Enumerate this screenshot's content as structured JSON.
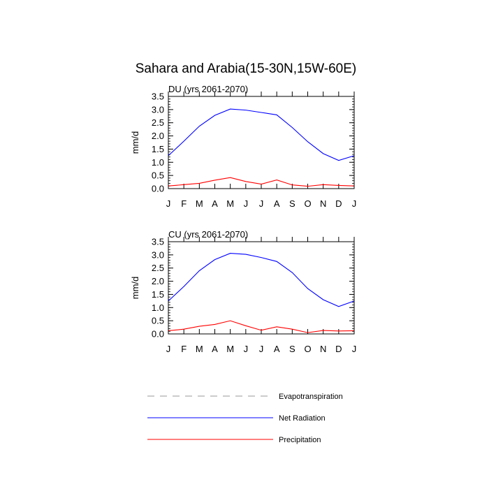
{
  "figure": {
    "title": "Sahara and Arabia(15-30N,15W-60E)"
  },
  "legend": [
    {
      "name": "Evapotranspiration",
      "style": "dashed",
      "color": "#999999"
    },
    {
      "name": "Net Radiation",
      "style": "solid",
      "color": "#0000ff"
    },
    {
      "name": "Precipitation",
      "style": "solid",
      "color": "#ff0000"
    }
  ],
  "chart_data": [
    {
      "type": "line",
      "title": "DU (yrs 2061-2070)",
      "xlabel": "",
      "ylabel": "mm/d",
      "categories": [
        "J",
        "F",
        "M",
        "A",
        "M",
        "J",
        "J",
        "A",
        "S",
        "O",
        "N",
        "D",
        "J"
      ],
      "ylim": [
        0,
        3.5
      ],
      "yticks": [
        "0.0",
        "0.5",
        "1.0",
        "1.5",
        "2.0",
        "2.5",
        "3.0",
        "3.5"
      ],
      "series": [
        {
          "name": "Net Radiation",
          "color": "#0000ff",
          "values": [
            1.25,
            1.8,
            2.37,
            2.78,
            3.02,
            2.98,
            2.89,
            2.8,
            2.32,
            1.78,
            1.33,
            1.07,
            1.25
          ]
        },
        {
          "name": "Precipitation",
          "color": "#ff0000",
          "values": [
            0.1,
            0.15,
            0.2,
            0.32,
            0.42,
            0.27,
            0.17,
            0.33,
            0.14,
            0.09,
            0.15,
            0.12,
            0.1
          ]
        }
      ]
    },
    {
      "type": "line",
      "title": "CU (yrs 2061-2070)",
      "xlabel": "",
      "ylabel": "mm/d",
      "categories": [
        "J",
        "F",
        "M",
        "A",
        "M",
        "J",
        "J",
        "A",
        "S",
        "O",
        "N",
        "D",
        "J"
      ],
      "ylim": [
        0,
        3.5
      ],
      "yticks": [
        "0.0",
        "0.5",
        "1.0",
        "1.5",
        "2.0",
        "2.5",
        "3.0",
        "3.5"
      ],
      "series": [
        {
          "name": "Net Radiation",
          "color": "#0000ff",
          "values": [
            1.25,
            1.8,
            2.4,
            2.82,
            3.06,
            3.02,
            2.9,
            2.75,
            2.33,
            1.72,
            1.3,
            1.04,
            1.25
          ]
        },
        {
          "name": "Precipitation",
          "color": "#ff0000",
          "values": [
            0.12,
            0.18,
            0.29,
            0.36,
            0.5,
            0.31,
            0.14,
            0.27,
            0.18,
            0.05,
            0.13,
            0.11,
            0.12
          ]
        }
      ]
    }
  ]
}
